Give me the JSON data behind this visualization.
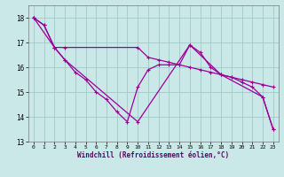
{
  "xlabel": "Windchill (Refroidissement éolien,°C)",
  "background_color": "#cbe8e8",
  "grid_color": "#a0c8c8",
  "line_color": "#990099",
  "ylim": [
    13,
    18.5
  ],
  "xlim": [
    -0.5,
    23.5
  ],
  "yticks": [
    13,
    14,
    15,
    16,
    17,
    18
  ],
  "xticks": [
    0,
    1,
    2,
    3,
    4,
    5,
    6,
    7,
    8,
    9,
    10,
    11,
    12,
    13,
    14,
    15,
    16,
    17,
    18,
    19,
    20,
    21,
    22,
    23
  ],
  "series1_x": [
    0,
    1,
    2,
    3,
    4,
    5,
    6,
    7,
    8,
    9,
    10,
    11,
    12,
    13,
    14,
    15,
    16,
    17,
    18,
    19,
    20,
    21,
    22,
    23
  ],
  "series1_y": [
    18.0,
    17.7,
    16.8,
    16.3,
    15.8,
    15.5,
    15.0,
    14.7,
    14.2,
    13.8,
    15.2,
    15.9,
    16.1,
    16.1,
    16.1,
    16.9,
    16.6,
    16.0,
    15.7,
    15.6,
    15.4,
    15.2,
    14.8,
    13.5
  ],
  "series2_x": [
    0,
    1,
    2,
    3,
    10,
    15,
    18,
    22,
    23
  ],
  "series2_y": [
    18.0,
    17.7,
    16.8,
    16.3,
    13.8,
    16.9,
    15.7,
    14.8,
    13.5
  ],
  "series3_x": [
    0,
    2,
    3,
    10,
    11,
    12,
    13,
    14,
    15,
    16,
    17,
    18,
    19,
    20,
    21,
    22,
    23
  ],
  "series3_y": [
    18.0,
    16.8,
    16.8,
    16.8,
    16.4,
    16.3,
    16.2,
    16.1,
    16.0,
    15.9,
    15.8,
    15.7,
    15.6,
    15.5,
    15.4,
    15.3,
    15.2
  ]
}
